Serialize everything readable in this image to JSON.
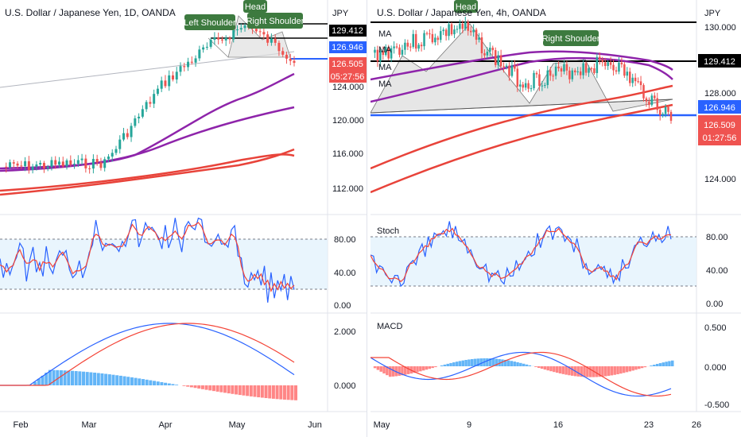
{
  "left": {
    "title": "U.S. Dollar / Japanese Yen, 1D, OANDA",
    "currency": "JPY",
    "annotations": {
      "left_shoulder": "Left Shoulder",
      "head": "Head",
      "right_shoulder": "Right Shoulder"
    },
    "price_axis": [
      "124.000",
      "120.000",
      "116.000",
      "112.000"
    ],
    "price_tags": {
      "level_high": "129.412",
      "level_neck": "126.946",
      "last": "126.505",
      "countdown": "05:27:56"
    },
    "stoch_axis": [
      "80.00",
      "40.00",
      "0.00"
    ],
    "macd_axis": [
      "2.000",
      "0.000"
    ],
    "time_axis": [
      "Feb",
      "Mar",
      "Apr",
      "May",
      "Jun"
    ]
  },
  "right": {
    "title": "U.S. Dollar / Japanese Yen, 4h, OANDA",
    "currency": "JPY",
    "annotations": {
      "head": "Head",
      "right_shoulder": "Right Shoulder"
    },
    "ma_labels": [
      "MA",
      "MA",
      "MA",
      "MA"
    ],
    "price_axis": [
      "130.000",
      "128.000",
      "124.000"
    ],
    "price_tags": {
      "level_high": "129.412",
      "level_neck": "126.946",
      "last": "126.509",
      "countdown": "01:27:56"
    },
    "stoch_label": "Stoch",
    "stoch_axis": [
      "80.00",
      "40.00",
      "0.00"
    ],
    "macd_label": "MACD",
    "macd_axis": [
      "0.500",
      "0.000",
      "-0.500"
    ],
    "time_axis": [
      "May",
      "9",
      "16",
      "23",
      "26"
    ]
  },
  "colors": {
    "up": "#26a69a",
    "down": "#ef5350",
    "ma_red": "#e8433a",
    "ma_purple": "#8e24aa",
    "blue": "#2962ff",
    "stoch_k": "#2962ff",
    "stoch_d": "#f44336",
    "hist_up": "#2196f3",
    "hist_down": "#ff5252",
    "label_green": "#3d7a3f"
  }
}
